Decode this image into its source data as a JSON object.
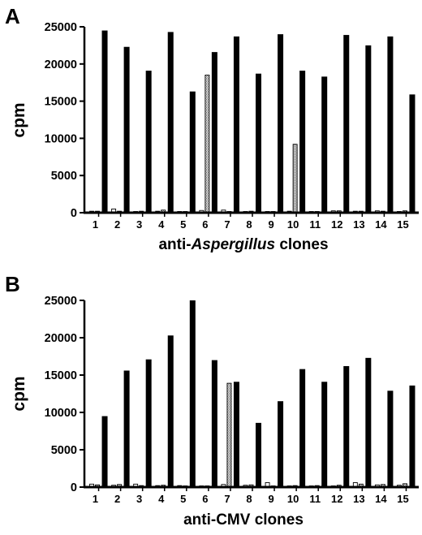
{
  "chart_data": [
    {
      "panel": "A",
      "type": "bar",
      "xlabel": [
        "anti-",
        "Aspergillus",
        " clones"
      ],
      "ylabel": "cpm",
      "ylim": [
        0,
        25000
      ],
      "yticks": [
        0,
        5000,
        10000,
        15000,
        20000,
        25000
      ],
      "categories": [
        "1",
        "2",
        "3",
        "4",
        "5",
        "6",
        "7",
        "8",
        "9",
        "10",
        "11",
        "12",
        "13",
        "14",
        "15"
      ],
      "series": [
        {
          "style": "white",
          "values": [
            200,
            500,
            150,
            200,
            150,
            300,
            350,
            150,
            100,
            200,
            150,
            250,
            200,
            250,
            150
          ]
        },
        {
          "style": "grey",
          "values": [
            200,
            200,
            200,
            350,
            150,
            18500,
            150,
            200,
            150,
            9200,
            150,
            250,
            200,
            200,
            250
          ]
        },
        {
          "style": "black",
          "values": [
            24500,
            22300,
            19100,
            24300,
            16300,
            21600,
            23700,
            18700,
            24000,
            19100,
            18300,
            23900,
            22500,
            23700,
            15900
          ]
        }
      ]
    },
    {
      "panel": "B",
      "type": "bar",
      "xlabel": [
        "anti-CMV clones"
      ],
      "ylabel": "cpm",
      "ylim": [
        0,
        25000
      ],
      "yticks": [
        0,
        5000,
        10000,
        15000,
        20000,
        25000
      ],
      "categories": [
        "1",
        "2",
        "3",
        "4",
        "5",
        "6",
        "7",
        "8",
        "9",
        "10",
        "11",
        "12",
        "13",
        "14",
        "15"
      ],
      "series": [
        {
          "style": "white",
          "values": [
            400,
            250,
            400,
            200,
            200,
            100,
            350,
            250,
            600,
            150,
            150,
            150,
            600,
            300,
            250
          ]
        },
        {
          "style": "grey",
          "values": [
            300,
            350,
            200,
            250,
            100,
            100,
            13900,
            300,
            150,
            200,
            200,
            250,
            400,
            350,
            450
          ]
        },
        {
          "style": "black",
          "values": [
            9500,
            15600,
            17100,
            20300,
            25000,
            17000,
            14100,
            8600,
            11500,
            15800,
            14100,
            16200,
            17300,
            12900,
            13600
          ]
        }
      ]
    }
  ]
}
